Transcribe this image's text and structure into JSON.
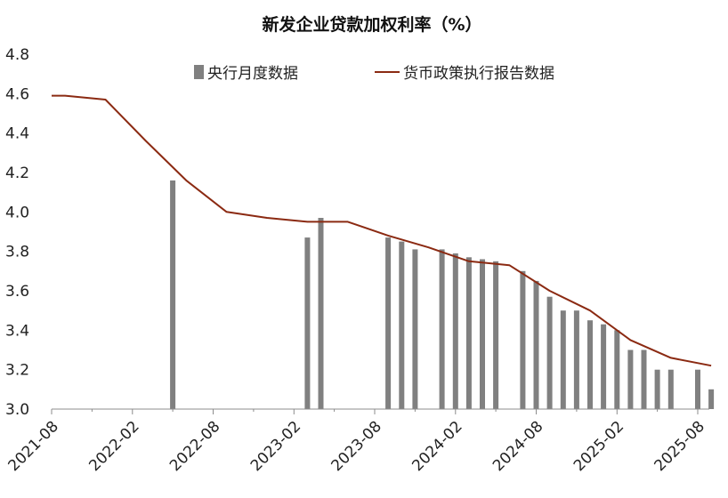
{
  "chart_data": {
    "type": "bar+line",
    "title": "新发企业贷款加权利率（%）",
    "ylim": [
      3.0,
      4.8
    ],
    "yticks": [
      "3.0",
      "3.2",
      "3.4",
      "3.6",
      "3.8",
      "4.0",
      "4.2",
      "4.4",
      "4.6",
      "4.8"
    ],
    "xticks": [
      "2021-08",
      "2022-02",
      "2022-08",
      "2023-02",
      "2023-08",
      "2024-02",
      "2024-08",
      "2025-02",
      "2025-08"
    ],
    "legend_position": "top",
    "bar_series": {
      "name": "央行月度数据",
      "color": "#808080",
      "points": [
        {
          "x": "2022-05",
          "y": 4.16
        },
        {
          "x": "2023-03",
          "y": 3.87
        },
        {
          "x": "2023-04",
          "y": 3.97
        },
        {
          "x": "2023-09",
          "y": 3.87
        },
        {
          "x": "2023-10",
          "y": 3.85
        },
        {
          "x": "2023-11",
          "y": 3.81
        },
        {
          "x": "2024-01",
          "y": 3.81
        },
        {
          "x": "2024-02",
          "y": 3.79
        },
        {
          "x": "2024-03",
          "y": 3.77
        },
        {
          "x": "2024-04",
          "y": 3.76
        },
        {
          "x": "2024-05",
          "y": 3.75
        },
        {
          "x": "2024-07",
          "y": 3.7
        },
        {
          "x": "2024-08",
          "y": 3.65
        },
        {
          "x": "2024-09",
          "y": 3.57
        },
        {
          "x": "2024-10",
          "y": 3.5
        },
        {
          "x": "2024-11",
          "y": 3.5
        },
        {
          "x": "2024-12",
          "y": 3.45
        },
        {
          "x": "2025-01",
          "y": 3.43
        },
        {
          "x": "2025-02",
          "y": 3.4
        },
        {
          "x": "2025-03",
          "y": 3.3
        },
        {
          "x": "2025-04",
          "y": 3.3
        },
        {
          "x": "2025-05",
          "y": 3.2
        },
        {
          "x": "2025-06",
          "y": 3.2
        },
        {
          "x": "2025-08",
          "y": 3.2
        },
        {
          "x": "2025-09",
          "y": 3.1
        }
      ]
    },
    "line_series": {
      "name": "货币政策执行报告数据",
      "color": "#8B2A12",
      "points": [
        {
          "x": "2021-08",
          "y": 4.59
        },
        {
          "x": "2021-09",
          "y": 4.59
        },
        {
          "x": "2021-12",
          "y": 4.57
        },
        {
          "x": "2022-03",
          "y": 4.36
        },
        {
          "x": "2022-06",
          "y": 4.16
        },
        {
          "x": "2022-09",
          "y": 4.0
        },
        {
          "x": "2022-12",
          "y": 3.97
        },
        {
          "x": "2023-03",
          "y": 3.95
        },
        {
          "x": "2023-06",
          "y": 3.95
        },
        {
          "x": "2023-09",
          "y": 3.88
        },
        {
          "x": "2023-12",
          "y": 3.82
        },
        {
          "x": "2024-03",
          "y": 3.75
        },
        {
          "x": "2024-06",
          "y": 3.73
        },
        {
          "x": "2024-09",
          "y": 3.6
        },
        {
          "x": "2024-12",
          "y": 3.5
        },
        {
          "x": "2025-03",
          "y": 3.35
        },
        {
          "x": "2025-06",
          "y": 3.26
        },
        {
          "x": "2025-09",
          "y": 3.22
        }
      ]
    }
  }
}
